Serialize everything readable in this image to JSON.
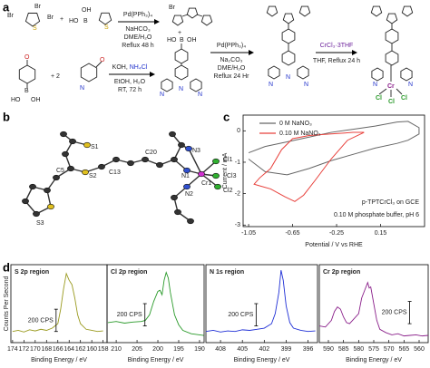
{
  "panel_labels": [
    "a",
    "b",
    "c",
    "d"
  ],
  "scheme": {
    "bromine": "Br",
    "sulfur": "S",
    "nitrogen": "N",
    "oxygen": "O",
    "boron": "B",
    "hydroxy_left": "HO",
    "hydroxy_right": "OH",
    "plus": "+",
    "plus_two": "+ 2",
    "chromium": "Cr",
    "chlorine": "Cl",
    "step_1": [
      "Pd(PPh₃)₄",
      "NaHCO₃",
      "DME/H₂O",
      "Reflux 48 h"
    ],
    "step_2": [
      "KOH, ",
      "NH₄Cl",
      "EtOH, H₂O",
      "RT, 72 h"
    ],
    "step_3": [
      "Pd(PPh₃)₄",
      "Na₂CO₃",
      "DME/H₂O",
      "Reflux 24 Hr"
    ],
    "step_4": [
      "CrCl₃·3THF",
      "THF, Reflux 24 h"
    ]
  },
  "structure": {
    "atoms": [
      "S1",
      "S2",
      "S3",
      "Cr1",
      "Cl1",
      "Cl2",
      "Cl3",
      "N1",
      "N2",
      "N3",
      "C13",
      "C20",
      "C5"
    ]
  },
  "chart_data": [
    {
      "type": "line",
      "ylabel": "Current / mA",
      "xlabel": "Potential / V vs RHE",
      "xlim": [
        -1.1,
        0.55
      ],
      "ylim": [
        -3.05,
        0.5
      ],
      "xticks": [
        -1.05,
        -0.65,
        -0.25,
        0.15
      ],
      "yticks": [
        0,
        -1,
        -2,
        -3
      ],
      "legend": "upper left",
      "annotations": [
        "p-TPTCrCl₃ on GCE",
        "0.10 M phosphate buffer, pH 6"
      ],
      "series": [
        {
          "name": "0 M NaNO₃",
          "color": "#666666",
          "x": [
            -1.05,
            -0.9,
            -0.7,
            -0.5,
            -0.3,
            -0.1,
            0.1,
            0.3,
            0.4,
            0.5,
            0.5,
            0.4,
            0.3,
            0.1,
            -0.1,
            -0.3,
            -0.5,
            -0.7,
            -0.9,
            -1.05
          ],
          "values": [
            -0.7,
            -0.5,
            -0.35,
            -0.2,
            -0.05,
            0.05,
            0.15,
            0.28,
            0.3,
            0.1,
            -0.1,
            -0.3,
            -0.4,
            -0.55,
            -0.75,
            -0.95,
            -1.2,
            -1.4,
            -1.3,
            -0.9
          ]
        },
        {
          "name": "0.10 M NaNO₃",
          "color": "#e8413c",
          "x": [
            0.0,
            -0.15,
            -0.3,
            -0.45,
            -0.55,
            -0.63,
            -0.72,
            -0.85,
            -0.95,
            -1.0,
            -0.95,
            -0.85,
            -0.75,
            -0.65,
            -0.5,
            -0.3,
            -0.1,
            0.0
          ],
          "values": [
            -0.05,
            -0.3,
            -0.9,
            -1.6,
            -2.05,
            -2.25,
            -2.1,
            -1.85,
            -1.75,
            -1.7,
            -1.5,
            -1.2,
            -0.6,
            -0.25,
            -0.15,
            -0.1,
            -0.05,
            -0.05
          ]
        }
      ]
    },
    {
      "type": "line",
      "title": "S 2p region",
      "color": "#9a9a1e",
      "ylabel": "Counts Per Second",
      "xlabel": "Binding Energy / eV",
      "xlim": [
        174.3,
        157.3
      ],
      "ylim": [
        0,
        700
      ],
      "xticks": [
        174,
        172,
        170,
        168,
        166,
        164,
        162,
        160,
        158
      ],
      "scale_bar": {
        "value": 200,
        "label": "200 CPS"
      },
      "x": [
        174,
        173,
        172,
        171,
        170,
        169,
        168,
        167,
        166,
        165.5,
        165,
        164.5,
        164,
        163.5,
        163,
        162.5,
        162,
        161,
        160,
        159,
        158
      ],
      "values": [
        100,
        110,
        95,
        115,
        105,
        120,
        110,
        130,
        170,
        300,
        480,
        620,
        560,
        520,
        400,
        250,
        170,
        120,
        110,
        100,
        105
      ]
    },
    {
      "type": "line",
      "title": "Cl 2p region",
      "color": "#2a9a2a",
      "xlabel": "Binding Energy / eV",
      "xlim": [
        212.2,
        188.9
      ],
      "ylim": [
        0,
        700
      ],
      "xticks": [
        210,
        205,
        200,
        195,
        190
      ],
      "scale_bar": {
        "value": 200,
        "label": "200 CPS"
      },
      "x": [
        212,
        210,
        208,
        206,
        204,
        203,
        202,
        201,
        200,
        199.5,
        199,
        198.5,
        198,
        197.5,
        197,
        196,
        195,
        194,
        192,
        190,
        189
      ],
      "values": [
        180,
        190,
        175,
        185,
        190,
        200,
        250,
        370,
        460,
        470,
        430,
        560,
        630,
        580,
        450,
        250,
        160,
        110,
        80,
        70,
        65
      ]
    },
    {
      "type": "line",
      "title": "N 1s region",
      "color": "#1f2fd6",
      "xlabel": "Binding Energy / eV",
      "xlim": [
        410,
        394.7
      ],
      "ylim": [
        0,
        700
      ],
      "xticks": [
        408,
        405,
        402,
        399,
        396
      ],
      "scale_bar": {
        "value": 200,
        "label": "200 CPS"
      },
      "x": [
        410,
        409,
        408,
        407,
        406,
        405,
        404,
        403,
        402,
        401,
        400.5,
        400,
        399.7,
        399.4,
        399,
        398.5,
        398,
        397,
        396,
        395
      ],
      "values": [
        100,
        110,
        95,
        105,
        100,
        115,
        110,
        120,
        130,
        170,
        260,
        450,
        650,
        560,
        330,
        180,
        130,
        110,
        100,
        105
      ]
    },
    {
      "type": "line",
      "title": "Cr 2p region",
      "color": "#8a1f8a",
      "xlabel": "Binding Energy / eV",
      "xlim": [
        593,
        557
      ],
      "ylim": [
        0,
        700
      ],
      "xticks": [
        590,
        585,
        580,
        575,
        570,
        565,
        560
      ],
      "scale_bar": {
        "value": 200,
        "label": "200 CPS"
      },
      "x": [
        593,
        591,
        589,
        588,
        587,
        586,
        585,
        584,
        583,
        582,
        580,
        579,
        578,
        577,
        576.5,
        576,
        575,
        574,
        573,
        571,
        569,
        567,
        565,
        563,
        561,
        559,
        557
      ],
      "values": [
        150,
        140,
        200,
        280,
        320,
        300,
        230,
        180,
        170,
        200,
        260,
        400,
        470,
        540,
        490,
        500,
        350,
        200,
        120,
        90,
        70,
        80,
        60,
        65,
        70,
        60,
        65
      ]
    }
  ]
}
